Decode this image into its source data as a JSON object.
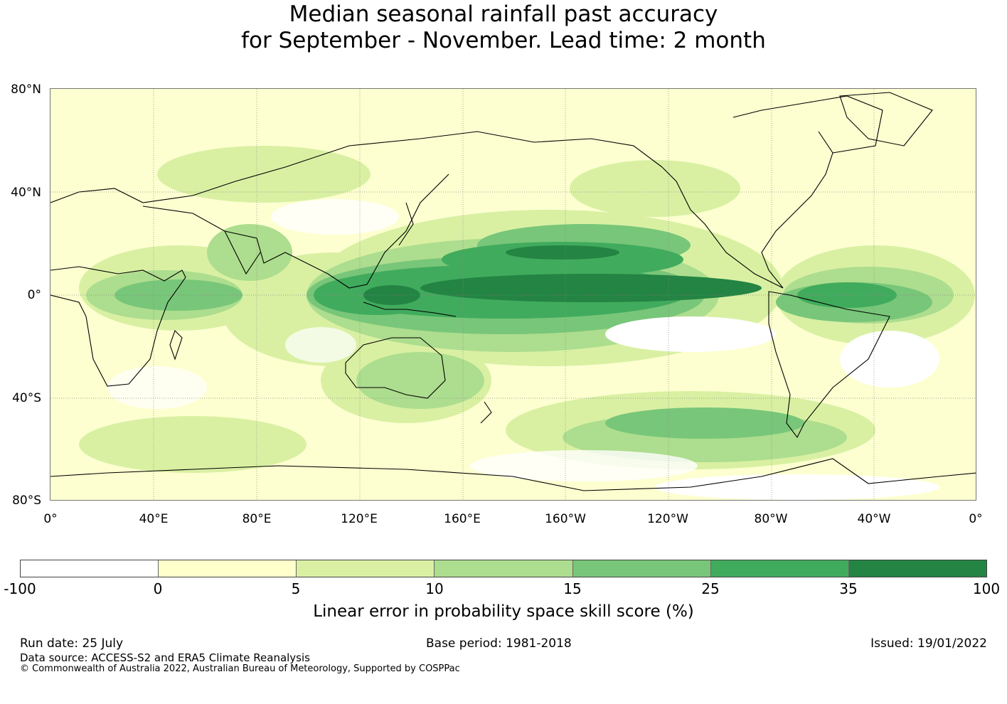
{
  "title": {
    "line1": "Median seasonal rainfall past accuracy",
    "line2": "for September - November. Lead time: 2 month"
  },
  "map": {
    "projection": "equirectangular",
    "background_color": "#fdffd0",
    "lat_labels": [
      "80°N",
      "40°N",
      "0°",
      "40°S",
      "80°S"
    ],
    "lon_labels": [
      "0°",
      "40°E",
      "80°E",
      "120°E",
      "160°E",
      "160°W",
      "120°W",
      "80°W",
      "40°W",
      "0°"
    ],
    "gridlines": true,
    "coastline_color": "#000000"
  },
  "colorbar": {
    "ticks": [
      "-100",
      "0",
      "5",
      "10",
      "15",
      "25",
      "35",
      "100"
    ],
    "colors": [
      "#ffffff",
      "#ffffcc",
      "#d9f0a3",
      "#addd8e",
      "#78c679",
      "#41ab5d",
      "#238443"
    ],
    "label": "Linear error in probability space skill score (%)"
  },
  "footer": {
    "run_date": "Run date: 25 July",
    "base_period": "Base period: 1981-2018",
    "issued": "Issued: 19/01/2022",
    "data_source": "Data source: ACCESS-S2 and ERA5 Climate Reanalysis",
    "copyright": "© Commonwealth of Australia 2022, Australian Bureau of Meteorology, Supported by COSPPac"
  }
}
